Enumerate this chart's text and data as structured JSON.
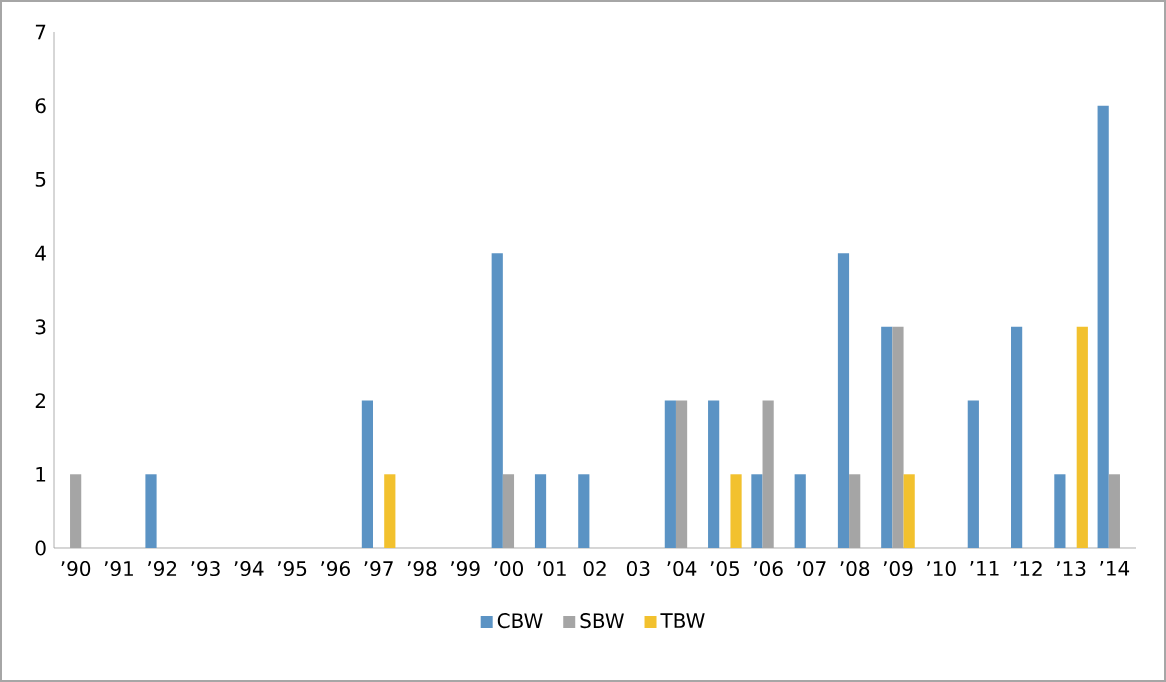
{
  "chart_data": {
    "type": "bar",
    "categories": [
      "’90",
      "’91",
      "’92",
      "’93",
      "’94",
      "’95",
      "’96",
      "’97",
      "’98",
      "’99",
      "’00",
      "’01",
      "02",
      "03",
      "’04",
      "’05",
      "’06",
      "’07",
      "’08",
      "’09",
      "’10",
      "’11",
      "’12",
      "’13",
      "’14"
    ],
    "series": [
      {
        "name": "CBW",
        "color": "#5b93c4",
        "values": [
          0,
          0,
          1,
          0,
          0,
          0,
          0,
          2,
          0,
          0,
          4,
          1,
          1,
          0,
          2,
          2,
          1,
          1,
          4,
          3,
          0,
          2,
          3,
          1,
          6
        ]
      },
      {
        "name": "SBW",
        "color": "#a5a5a5",
        "values": [
          1,
          0,
          0,
          0,
          0,
          0,
          0,
          0,
          0,
          0,
          1,
          0,
          0,
          0,
          2,
          0,
          2,
          0,
          1,
          3,
          0,
          0,
          0,
          0,
          1
        ]
      },
      {
        "name": "TBW",
        "color": "#f2c12e",
        "values": [
          0,
          0,
          0,
          0,
          0,
          0,
          0,
          1,
          0,
          0,
          0,
          0,
          0,
          0,
          0,
          1,
          0,
          0,
          0,
          1,
          0,
          0,
          0,
          3,
          0
        ]
      }
    ],
    "ylim": [
      0,
      7
    ],
    "yticks": [
      0,
      1,
      2,
      3,
      4,
      5,
      6,
      7
    ],
    "grid": false,
    "legend": "bottom"
  }
}
